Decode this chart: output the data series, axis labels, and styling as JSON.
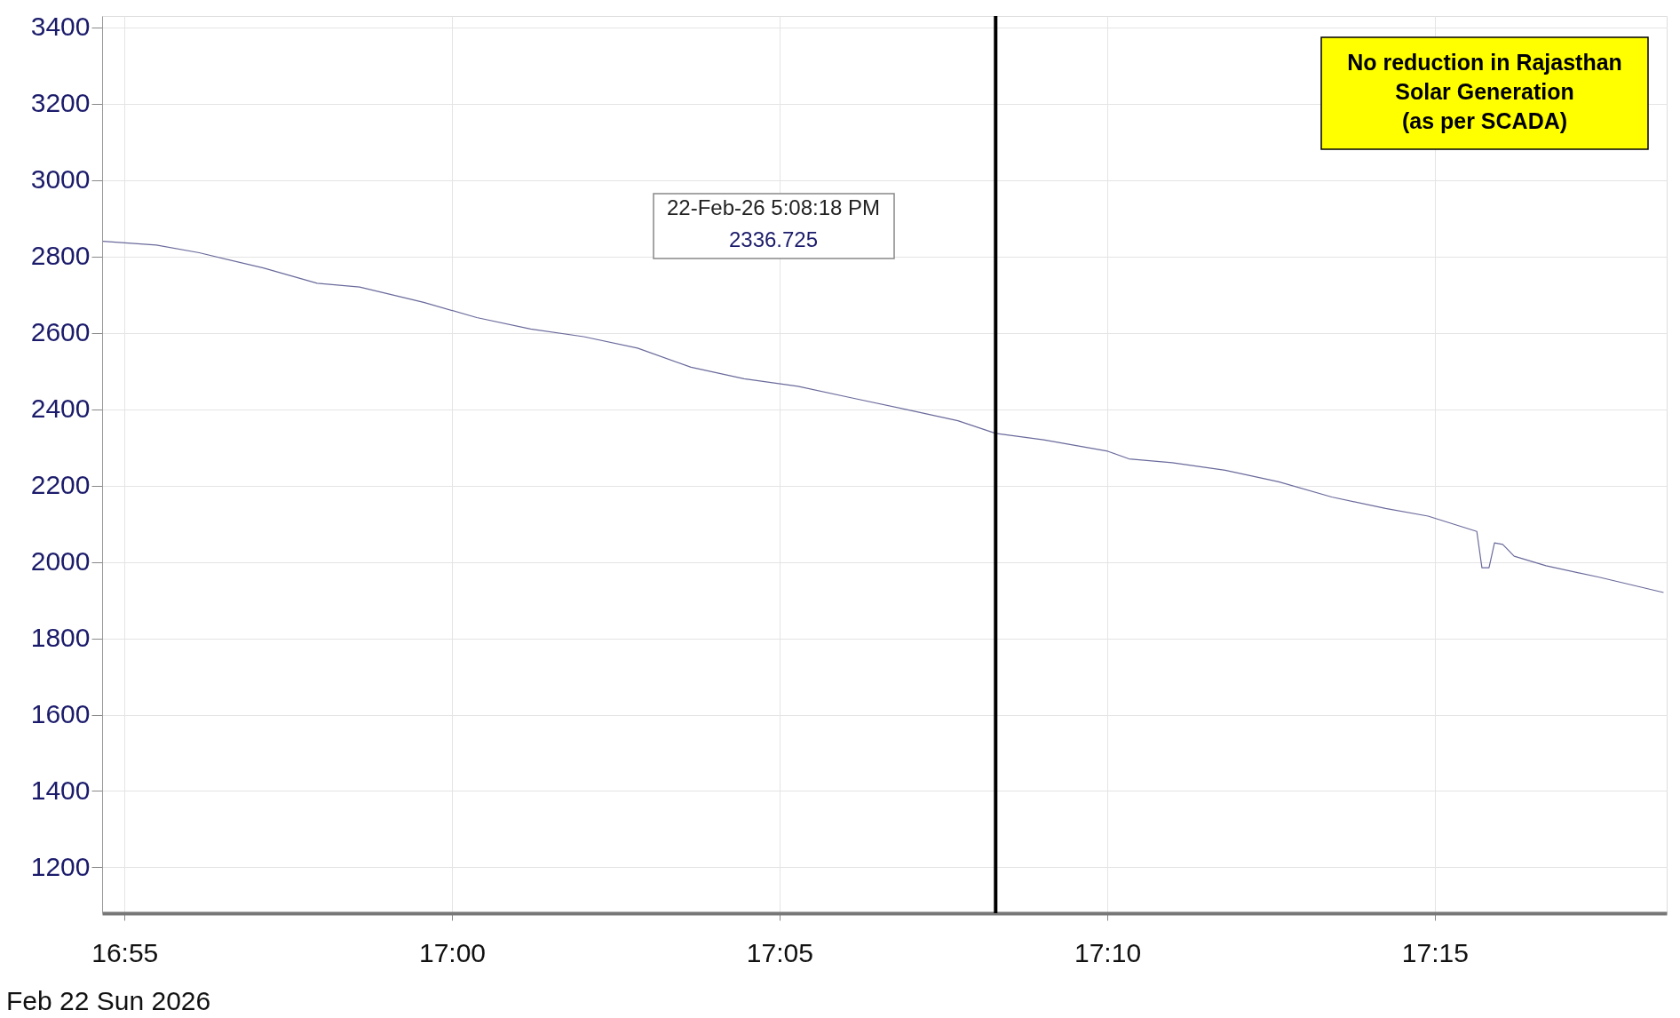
{
  "chart_data": {
    "type": "line",
    "xlabel": "Feb 22 Sun 2026",
    "x": [
      16.9112,
      16.9248,
      16.9357,
      16.952,
      16.9657,
      16.9765,
      16.9928,
      17.0063,
      17.02,
      17.0335,
      17.0472,
      17.0608,
      17.0743,
      17.088,
      17.1015,
      17.1152,
      17.1287,
      17.1383,
      17.1505,
      17.1668,
      17.1722,
      17.1832,
      17.1967,
      17.2103,
      17.2238,
      17.2375,
      17.2483,
      17.2607,
      17.262,
      17.2638,
      17.2652,
      17.2673,
      17.2702,
      17.2783,
      17.2918,
      17.3082
    ],
    "series": [
      {
        "color": "#6a6a9c",
        "values": [
          2840,
          2830,
          2810,
          2770,
          2730,
          2720,
          2680,
          2640,
          2610,
          2590,
          2560,
          2510,
          2480,
          2460,
          2430,
          2400,
          2370,
          2336.725,
          2320,
          2290,
          2270,
          2260,
          2240,
          2210,
          2170,
          2140,
          2120,
          2080,
          1985,
          1985,
          2050,
          2046,
          2015,
          1990,
          1960,
          1920
        ]
      }
    ],
    "xlim": [
      16.911,
      17.309
    ],
    "xticks": [
      {
        "value": 16.9167,
        "label": "16:55"
      },
      {
        "value": 17.0,
        "label": "17:00"
      },
      {
        "value": 17.0833,
        "label": "17:05"
      },
      {
        "value": 17.1667,
        "label": "17:10"
      },
      {
        "value": 17.25,
        "label": "17:15"
      }
    ],
    "ylim": [
      1080,
      3430
    ],
    "yticks": [
      1200,
      1400,
      1600,
      1800,
      2000,
      2200,
      2400,
      2600,
      2800,
      3000,
      3200,
      3400
    ],
    "grid": true,
    "ref_lines": [
      {
        "axis": "x",
        "value": 17.1383,
        "color": "#000000"
      }
    ],
    "annotations": [
      "22-Feb-26  5:08:18 PM",
      "2336.725",
      "No reduction in Rajasthan\nSolar Generation\n(as per SCADA)"
    ]
  }
}
